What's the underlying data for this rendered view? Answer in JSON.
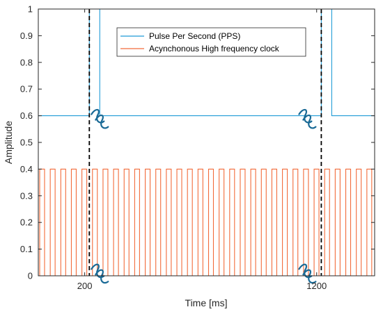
{
  "chart_data": {
    "type": "line",
    "title": "",
    "xlabel": "Time [ms]",
    "ylabel": "Amplitude",
    "xlim": [
      0,
      1450
    ],
    "ylim": [
      0,
      1
    ],
    "xticks": [
      200,
      1200
    ],
    "yticks": [
      0,
      0.1,
      0.2,
      0.3,
      0.4,
      0.5,
      0.6,
      0.7,
      0.8,
      0.9,
      1
    ],
    "ytick_labels": [
      "0",
      "0.1",
      "0.2",
      "0.3",
      "0.4",
      "0.5",
      "0.6",
      "0.7",
      "0.8",
      "0.9",
      "1"
    ],
    "grid": false,
    "legend_position": "top-center",
    "series": [
      {
        "name": "Pulse Per Second (PPS)",
        "color": "#1f9bd6",
        "low": 0.6,
        "high": 1,
        "pulses": [
          [
            220,
            265
          ],
          [
            1220,
            265
          ]
        ]
      },
      {
        "name": "Acynchonous High frequency clock",
        "color": "#f26b3a",
        "low": 0,
        "high": 0.4,
        "period": 45.5,
        "high_duration": 21,
        "first_rise": 6
      }
    ],
    "annotations": {
      "dashed_lines_x": [
        220,
        1220
      ],
      "break_marks": [
        {
          "x": 265,
          "y": 0.6
        },
        {
          "x": 1160,
          "y": 0.6
        },
        {
          "x": 265,
          "y": 0.02
        },
        {
          "x": 1160,
          "y": 0.02
        }
      ],
      "break_color": "#1a6a96",
      "dashed_color": "#000000"
    }
  }
}
